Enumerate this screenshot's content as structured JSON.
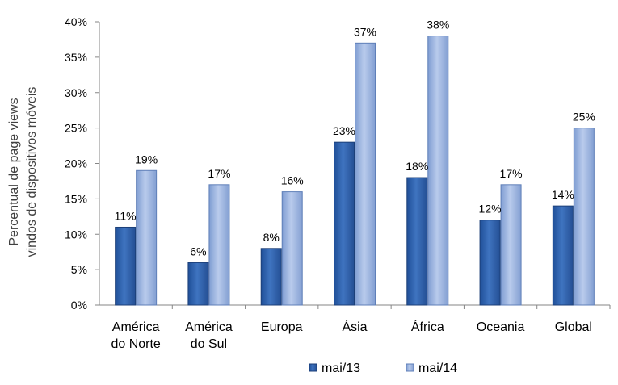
{
  "chart_data": {
    "type": "bar",
    "categories": [
      [
        "América",
        "do Norte"
      ],
      [
        "América",
        "do Sul"
      ],
      [
        "Europa"
      ],
      [
        "Ásia"
      ],
      [
        "África"
      ],
      [
        "Oceania"
      ],
      [
        "Global"
      ]
    ],
    "series": [
      {
        "name": "mai/13",
        "values": [
          11,
          6,
          8,
          23,
          18,
          12,
          14
        ],
        "labels": [
          "11%",
          "6%",
          "8%",
          "23%",
          "18%",
          "12%",
          "14%"
        ],
        "color": "#2e5fa8"
      },
      {
        "name": "mai/14",
        "values": [
          19,
          17,
          16,
          37,
          38,
          17,
          25
        ],
        "labels": [
          "19%",
          "17%",
          "16%",
          "37%",
          "38%",
          "17%",
          "25%"
        ],
        "color": "#9db3dc"
      }
    ],
    "ylabel": [
      "Percentual de page views",
      "vindos de dispositivos móveis"
    ],
    "ylim": [
      0,
      40
    ],
    "yticks": [
      0,
      5,
      10,
      15,
      20,
      25,
      30,
      35,
      40
    ],
    "ytick_labels": [
      "0%",
      "5%",
      "10%",
      "15%",
      "20%",
      "25%",
      "30%",
      "35%",
      "40%"
    ],
    "grid": false,
    "legend_position": "bottom"
  }
}
